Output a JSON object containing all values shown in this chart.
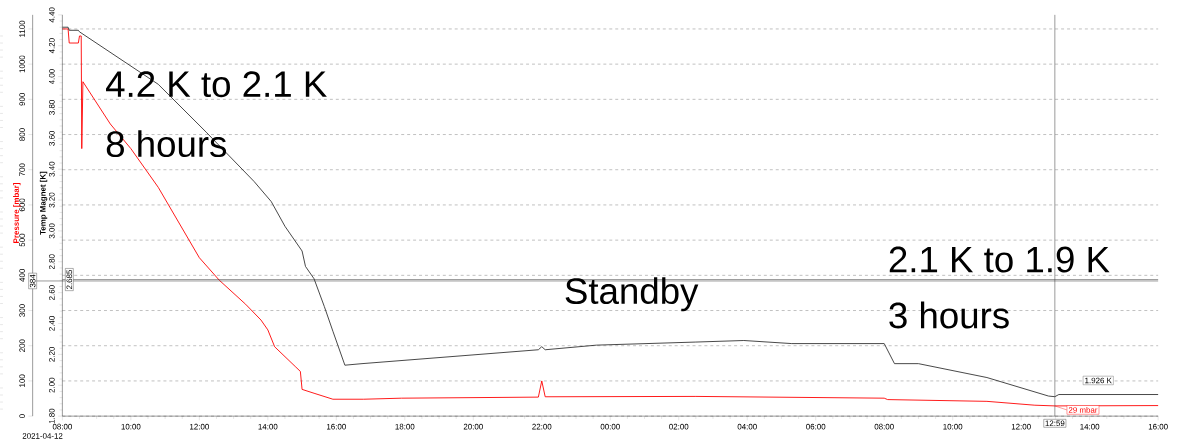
{
  "chart_data": {
    "type": "line",
    "ylabel": "Pressure [mbar]",
    "y2label": "Temp Magnet [K]",
    "xlim": [
      "2021-04-12T08:00",
      "2021-04-13T16:00"
    ],
    "xticks": [
      {
        "value": "2021-04-12T08:00",
        "label": "08:00"
      },
      {
        "value": "2021-04-12T10:00",
        "label": "10:00"
      },
      {
        "value": "2021-04-12T12:00",
        "label": "12:00"
      },
      {
        "value": "2021-04-12T14:00",
        "label": "14:00"
      },
      {
        "value": "2021-04-12T16:00",
        "label": "16:00"
      },
      {
        "value": "2021-04-12T18:00",
        "label": "18:00"
      },
      {
        "value": "2021-04-12T20:00",
        "label": "20:00"
      },
      {
        "value": "2021-04-12T22:00",
        "label": "22:00"
      },
      {
        "value": "2021-04-13T00:00",
        "label": "00:00"
      },
      {
        "value": "2021-04-13T02:00",
        "label": "02:00"
      },
      {
        "value": "2021-04-13T04:00",
        "label": "04:00"
      },
      {
        "value": "2021-04-13T06:00",
        "label": "06:00"
      },
      {
        "value": "2021-04-13T08:00",
        "label": "08:00"
      },
      {
        "value": "2021-04-13T10:00",
        "label": "10:00"
      },
      {
        "value": "2021-04-13T12:00",
        "label": "12:00"
      },
      {
        "value": "2021-04-13T14:00",
        "label": "14:00"
      },
      {
        "value": "2021-04-13T16:00",
        "label": "16:00"
      }
    ],
    "ylim": [
      0,
      1140
    ],
    "yticks": [
      0,
      100,
      200,
      300,
      400,
      500,
      600,
      700,
      800,
      900,
      1000,
      1100
    ],
    "y2lim": [
      1.8,
      4.4
    ],
    "y2ticks": [
      {
        "value": 1.8,
        "label": "1.80"
      },
      {
        "value": 2.0,
        "label": "2.00"
      },
      {
        "value": 2.2,
        "label": "2.20"
      },
      {
        "value": 2.4,
        "label": "2.40"
      },
      {
        "value": 2.6,
        "label": "2.60"
      },
      {
        "value": 2.8,
        "label": "2.80"
      },
      {
        "value": 3.0,
        "label": "3.00"
      },
      {
        "value": 3.2,
        "label": "3.20"
      },
      {
        "value": 3.4,
        "label": "3.40"
      },
      {
        "value": 3.6,
        "label": "3.60"
      },
      {
        "value": 3.8,
        "label": "3.80"
      },
      {
        "value": 4.0,
        "label": "4.00"
      },
      {
        "value": 4.2,
        "label": "4.20"
      },
      {
        "value": 4.4,
        "label": "4.40"
      }
    ],
    "grid": "y",
    "marker": "none",
    "line_style": "solid",
    "series": [
      {
        "color": "#ff0000",
        "x": [
          "2021-04-12T08:00",
          "2021-04-12T08:10",
          "2021-04-12T08:12",
          "2021-04-12T08:28",
          "2021-04-12T08:30",
          "2021-04-12T08:33",
          "2021-04-12T08:34",
          "2021-04-12T08:36",
          "2021-04-12T09:24",
          "2021-04-12T10:00",
          "2021-04-12T10:48",
          "2021-04-12T12:00",
          "2021-04-12T12:35",
          "2021-04-12T13:21",
          "2021-04-12T13:48",
          "2021-04-12T14:00",
          "2021-04-12T14:12",
          "2021-04-12T14:48",
          "2021-04-12T14:57",
          "2021-04-12T15:00",
          "2021-04-12T15:21",
          "2021-04-12T15:54",
          "2021-04-12T16:48",
          "2021-04-12T17:54",
          "2021-04-12T21:54",
          "2021-04-12T22:00",
          "2021-04-12T22:06",
          "2021-04-13T02:30",
          "2021-04-13T08:00",
          "2021-04-13T08:06",
          "2021-04-13T11:00",
          "2021-04-13T12:24",
          "2021-04-13T12:59",
          "2021-04-13T16:00"
        ],
        "values": [
          1100,
          1100,
          1060,
          1060,
          1080,
          1080,
          760,
          950,
          830,
          760,
          650,
          450,
          386,
          318,
          273,
          245,
          197,
          141,
          127,
          76,
          65,
          48,
          48,
          51,
          54,
          100,
          55,
          56,
          51,
          47,
          42,
          31,
          29,
          30
        ]
      },
      {
        "color": "#333333",
        "axis": "y2",
        "x": [
          "2021-04-12T08:00",
          "2021-04-12T08:10",
          "2021-04-12T08:12",
          "2021-04-12T08:28",
          "2021-04-12T08:30",
          "2021-04-12T10:48",
          "2021-04-12T12:12",
          "2021-04-12T13:36",
          "2021-04-12T14:06",
          "2021-04-12T14:30",
          "2021-04-12T15:00",
          "2021-04-12T15:06",
          "2021-04-12T15:21",
          "2021-04-12T15:39",
          "2021-04-12T15:54",
          "2021-04-12T16:15",
          "2021-04-12T16:45",
          "2021-04-12T21:54",
          "2021-04-12T22:00",
          "2021-04-12T22:06",
          "2021-04-12T23:36",
          "2021-04-13T02:30",
          "2021-04-13T03:54",
          "2021-04-13T05:18",
          "2021-04-13T08:00",
          "2021-04-13T08:18",
          "2021-04-13T09:00",
          "2021-04-13T11:00",
          "2021-04-13T12:48",
          "2021-04-13T12:59",
          "2021-04-13T13:06",
          "2021-04-13T14:18",
          "2021-04-13T16:00"
        ],
        "values": [
          4.32,
          4.32,
          4.3,
          4.3,
          4.29,
          3.95,
          3.64,
          3.32,
          3.19,
          3.03,
          2.87,
          2.77,
          2.69,
          2.51,
          2.35,
          2.13,
          2.14,
          2.23,
          2.25,
          2.23,
          2.26,
          2.28,
          2.29,
          2.27,
          2.27,
          2.14,
          2.14,
          2.05,
          1.93,
          1.926,
          1.94,
          1.94,
          1.94
        ]
      }
    ],
    "ref_lines": [
      {
        "axis": "x",
        "value": "2021-04-13T12:59",
        "label": "12:59",
        "color": "#333333"
      },
      {
        "axis": "y",
        "value": 384,
        "label": "384",
        "color": "#333333"
      },
      {
        "axis": "y2",
        "value": 2.685,
        "label": "2.685",
        "color": "#333333"
      }
    ],
    "annotations": [
      "4.2 K to 2.1 K",
      "8 hours",
      "Standby",
      "2.1 K to 1.9 K",
      "3 hours",
      "2021-04-12",
      "1.926 K",
      {
        "text": "29 mbar",
        "x": "2021-04-13T12:59",
        "y": 29
      }
    ]
  }
}
